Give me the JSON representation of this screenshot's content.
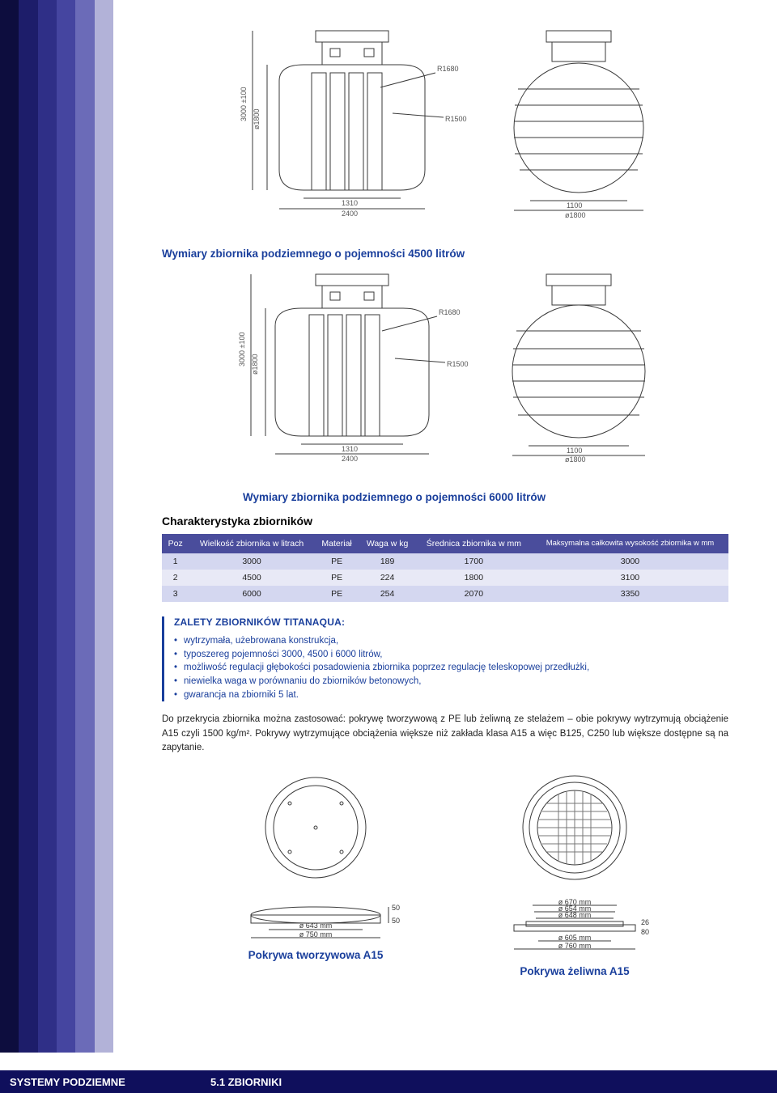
{
  "sidebar_colors": [
    "#0d0d3e",
    "#1d1d6a",
    "#2f2f87",
    "#4545a0",
    "#6b6bb8",
    "#b2b2d8"
  ],
  "captions": {
    "dim4500": "Wymiary zbiornika podziemnego o pojemności 4500 litrów",
    "dim6000": "Wymiary zbiornika podziemnego o pojemności 6000 litrów",
    "charakterystyka": "Charakterystyka zbiorników"
  },
  "drawings": {
    "labels": [
      "R1680",
      "R1500",
      "1310",
      "2400",
      "ø1800",
      "1100",
      "ø1800",
      "3000 ±100"
    ]
  },
  "table": {
    "columns": [
      "Poz",
      "Wielkość zbiornika w litrach",
      "Materiał",
      "Waga w kg",
      "Średnica zbiornika w mm",
      "Maksymalna całkowita wysokość zbiornika w mm"
    ],
    "rows": [
      [
        "1",
        "3000",
        "PE",
        "189",
        "1700",
        "3000"
      ],
      [
        "2",
        "4500",
        "PE",
        "224",
        "1800",
        "3100"
      ],
      [
        "3",
        "6000",
        "PE",
        "254",
        "2070",
        "3350"
      ]
    ]
  },
  "zalety": {
    "title": "ZALETY ZBIORNIKÓW TITANAQUA:",
    "items": [
      "wytrzymała, użebrowana konstrukcja,",
      "typoszereg pojemności 3000, 4500 i 6000 litrów,",
      "możliwość regulacji głębokości posadowienia zbiornika poprzez regulację teleskopowej przedłużki,",
      "niewielka waga w porównaniu do zbiorników betonowych,",
      "gwarancja na zbiorniki 5 lat."
    ]
  },
  "paragraph": "Do przekrycia zbiornika można zastosować: pokrywę tworzywową z PE lub żeliwną ze stelażem – obie pokrywy wytrzymują obciążenie A15 czyli 1500 kg/m². Pokrywy wytrzymujące obciążenia większe niż zakłada klasa A15 a więc B125, C250 lub większe dostępne są na zapytanie.",
  "covers": {
    "left": {
      "caption": "Pokrywa tworzywowa A15",
      "dims": {
        "d1": "ø 643 mm",
        "d2": "ø 750 mm",
        "side_top": "50",
        "side_bottom": "50"
      }
    },
    "right": {
      "caption": "Pokrywa żeliwna A15",
      "dims": {
        "a": "ø 670 mm",
        "b": "ø 654 mm",
        "c": "ø 648 mm",
        "d": "ø 605 mm",
        "e": "ø 760 mm",
        "h1": "26",
        "h2": "80"
      }
    }
  },
  "footer": {
    "left": "SYSTEMY PODZIEMNE",
    "right": "5.1 ZBIORNIKI"
  }
}
